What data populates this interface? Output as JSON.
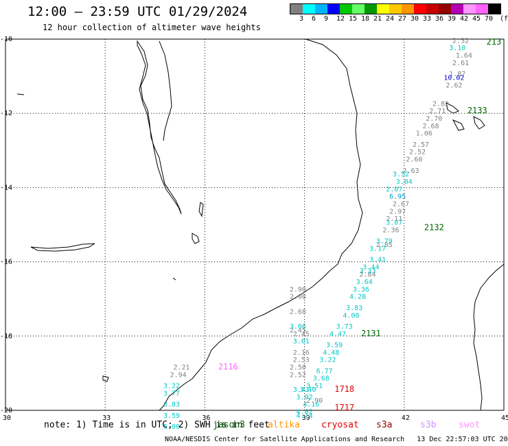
{
  "title": "12:00 — 23:59 UTC 01/29/2024",
  "subtitle": "12 hour collection of altimeter wave heights",
  "legend": {
    "colors": [
      "#808080",
      "#00ffff",
      "#00b4ff",
      "#0000ff",
      "#00c800",
      "#64ff64",
      "#009600",
      "#ffff00",
      "#ffc800",
      "#ff9600",
      "#ff0000",
      "#c80000",
      "#960000",
      "#b400b4",
      "#ff96ff",
      "#ff64ff",
      "#000000"
    ],
    "labels": [
      "3",
      "6",
      "9",
      "12",
      "15",
      "18",
      "21",
      "24",
      "27",
      "30",
      "33",
      "36",
      "39",
      "42",
      "45",
      "70",
      "(ft)"
    ]
  },
  "axes": {
    "x_ticks": [
      "30",
      "33",
      "36",
      "39",
      "42",
      "45"
    ],
    "y_ticks": [
      "-10",
      "-12",
      "-14",
      "-16",
      "-18",
      "-20"
    ]
  },
  "chart_data": {
    "type": "scatter",
    "xlabel": "",
    "ylabel": "",
    "xlim": [
      30,
      45
    ],
    "ylim": [
      -20,
      -10
    ],
    "series": [
      {
        "color": "#808080",
        "points": [
          {
            "x": 43.7,
            "y": -10.1,
            "v": "2.32"
          },
          {
            "x": 43.8,
            "y": -10.5,
            "v": "1.64"
          },
          {
            "x": 43.7,
            "y": -10.7,
            "v": "2.61"
          },
          {
            "x": 43.6,
            "y": -11.0,
            "v": "1.87"
          },
          {
            "x": 43.5,
            "y": -11.3,
            "v": "2.62"
          },
          {
            "x": 43.1,
            "y": -11.8,
            "v": "2.82"
          },
          {
            "x": 43.0,
            "y": -12.0,
            "v": "2.71"
          },
          {
            "x": 42.9,
            "y": -12.2,
            "v": "2.70"
          },
          {
            "x": 42.8,
            "y": -12.4,
            "v": "2.68"
          },
          {
            "x": 42.6,
            "y": -12.6,
            "v": "1.06"
          },
          {
            "x": 42.5,
            "y": -12.9,
            "v": "2.57"
          },
          {
            "x": 42.4,
            "y": -13.1,
            "v": "2.52"
          },
          {
            "x": 42.3,
            "y": -13.3,
            "v": "2.60"
          },
          {
            "x": 42.2,
            "y": -13.6,
            "v": "2.63"
          },
          {
            "x": 41.9,
            "y": -14.5,
            "v": "2.67"
          },
          {
            "x": 41.8,
            "y": -14.7,
            "v": "2.97"
          },
          {
            "x": 41.7,
            "y": -14.9,
            "v": "2.11"
          },
          {
            "x": 41.6,
            "y": -15.2,
            "v": "2.36"
          },
          {
            "x": 41.4,
            "y": -15.6,
            "v": "2.85"
          },
          {
            "x": 40.9,
            "y": -16.4,
            "v": "2.84"
          },
          {
            "x": 38.8,
            "y": -16.8,
            "v": "2.90"
          },
          {
            "x": 38.8,
            "y": -17.0,
            "v": "2.08"
          },
          {
            "x": 38.8,
            "y": -17.4,
            "v": "2.68"
          },
          {
            "x": 38.8,
            "y": -17.9,
            "v": "2.45"
          },
          {
            "x": 38.9,
            "y": -18.0,
            "v": "2.45"
          },
          {
            "x": 38.9,
            "y": -18.5,
            "v": "2.16"
          },
          {
            "x": 38.9,
            "y": -18.7,
            "v": "2.53"
          },
          {
            "x": 38.8,
            "y": -18.9,
            "v": "2.50"
          },
          {
            "x": 38.8,
            "y": -19.1,
            "v": "2.52"
          },
          {
            "x": 39.3,
            "y": -19.8,
            "v": "2.90"
          },
          {
            "x": 35.3,
            "y": -18.9,
            "v": "2.21"
          },
          {
            "x": 35.2,
            "y": -19.1,
            "v": "2.94"
          }
        ]
      },
      {
        "color": "#00c8c8",
        "points": [
          {
            "x": 43.6,
            "y": -10.3,
            "v": "3.10"
          },
          {
            "x": 41.9,
            "y": -13.7,
            "v": "3.52"
          },
          {
            "x": 42.0,
            "y": -13.9,
            "v": "3.04"
          },
          {
            "x": 41.7,
            "y": -14.1,
            "v": "2.07"
          },
          {
            "x": 41.7,
            "y": -15.0,
            "v": "3.07"
          },
          {
            "x": 41.4,
            "y": -15.5,
            "v": "3.79"
          },
          {
            "x": 41.2,
            "y": -15.7,
            "v": "3.17"
          },
          {
            "x": 41.2,
            "y": -16.0,
            "v": "3.41"
          },
          {
            "x": 41.0,
            "y": -16.2,
            "v": "3.44"
          },
          {
            "x": 40.9,
            "y": -16.3,
            "v": "3.33"
          },
          {
            "x": 40.8,
            "y": -16.6,
            "v": "3.64"
          },
          {
            "x": 40.7,
            "y": -16.8,
            "v": "3.36"
          },
          {
            "x": 40.6,
            "y": -17.0,
            "v": "4.28"
          },
          {
            "x": 40.5,
            "y": -17.3,
            "v": "3.83"
          },
          {
            "x": 40.4,
            "y": -17.5,
            "v": "4.00"
          },
          {
            "x": 40.2,
            "y": -17.8,
            "v": "3.73"
          },
          {
            "x": 40.0,
            "y": -18.0,
            "v": "4.47"
          },
          {
            "x": 39.9,
            "y": -18.3,
            "v": "3.59"
          },
          {
            "x": 39.8,
            "y": -18.5,
            "v": "4.48"
          },
          {
            "x": 39.7,
            "y": -18.7,
            "v": "3.22"
          },
          {
            "x": 39.6,
            "y": -19.0,
            "v": "6.77"
          },
          {
            "x": 39.5,
            "y": -19.2,
            "v": "3.68"
          },
          {
            "x": 39.3,
            "y": -19.4,
            "v": "3.51"
          },
          {
            "x": 39.1,
            "y": -19.5,
            "v": "3.40"
          },
          {
            "x": 39.0,
            "y": -19.7,
            "v": "3.02"
          },
          {
            "x": 39.2,
            "y": -19.9,
            "v": "4.16"
          },
          {
            "x": 39.0,
            "y": -20.1,
            "v": "4.62"
          },
          {
            "x": 39.0,
            "y": -20.2,
            "v": "4.14"
          },
          {
            "x": 38.8,
            "y": -17.8,
            "v": "3.06"
          },
          {
            "x": 38.9,
            "y": -18.2,
            "v": "3.01"
          },
          {
            "x": 38.9,
            "y": -19.5,
            "v": "3.41"
          },
          {
            "x": 35.0,
            "y": -19.4,
            "v": "3.22"
          },
          {
            "x": 35.0,
            "y": -19.6,
            "v": "3.77"
          },
          {
            "x": 35.0,
            "y": -19.9,
            "v": "3.83"
          },
          {
            "x": 35.0,
            "y": -20.2,
            "v": "3.59"
          },
          {
            "x": 35.0,
            "y": -20.5,
            "v": "5.00"
          }
        ]
      },
      {
        "color": "#0000c8",
        "points": [
          {
            "x": 43.5,
            "y": -11.1,
            "v": "10.02"
          }
        ]
      },
      {
        "color": "#0096c8",
        "points": [
          {
            "x": 41.8,
            "y": -14.3,
            "v": "6.95"
          }
        ]
      }
    ],
    "pass_ids": [
      {
        "label": "213",
        "color": "#006400",
        "x": 44.7,
        "y": -10.15
      },
      {
        "label": "2133",
        "color": "#006400",
        "x": 44.2,
        "y": -12.0
      },
      {
        "label": "2132",
        "color": "#006400",
        "x": 42.9,
        "y": -15.15
      },
      {
        "label": "2131",
        "color": "#006400",
        "x": 41.0,
        "y": -18.0
      },
      {
        "label": "2116",
        "color": "#ff64ff",
        "x": 36.7,
        "y": -18.9
      },
      {
        "label": "1718",
        "color": "#e00000",
        "x": 40.2,
        "y": -19.5
      },
      {
        "label": "1717",
        "color": "#e00000",
        "x": 40.2,
        "y": -20.0
      }
    ]
  },
  "note": "note: 1) Time is in UTC; 2) SWH is in feet",
  "satellites": [
    {
      "name": "jason3",
      "color": "#006400"
    },
    {
      "name": "altika",
      "color": "#ff9600"
    },
    {
      "name": "cryosat",
      "color": "#e00000"
    },
    {
      "name": "s3a",
      "color": "#960000"
    },
    {
      "name": "s3b",
      "color": "#c896ff"
    },
    {
      "name": "swot",
      "color": "#ff96ff"
    }
  ],
  "footer": "NOAA/NESDIS Center for Satellite Applications and Research   13 Dec 22:57:03 UTC 2024"
}
